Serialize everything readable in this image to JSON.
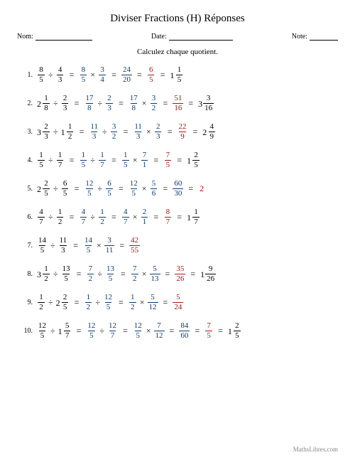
{
  "title": "Diviser Fractions (H) Réponses",
  "meta": {
    "name_label": "Nom:",
    "date_label": "Date:",
    "note_label": "Note:"
  },
  "instruction": "Calculez chaque quotient.",
  "footer": "MathsLibres.com",
  "colors": {
    "step_blue": "#0b3a6f",
    "result_red": "#a01818",
    "text": "#000000"
  },
  "line_widths": {
    "name": 80,
    "date": 90,
    "note": 40
  },
  "problems": [
    {
      "n": "1.",
      "lhs": [
        {
          "t": "f",
          "n": "8",
          "d": "5"
        },
        {
          "t": "op",
          "v": "÷"
        },
        {
          "t": "f",
          "n": "4",
          "d": "3"
        }
      ],
      "steps": [
        [
          {
            "t": "f",
            "n": "8",
            "d": "5",
            "c": "b"
          },
          {
            "t": "op",
            "v": "×"
          },
          {
            "t": "f",
            "n": "3",
            "d": "4",
            "c": "b"
          }
        ],
        [
          {
            "t": "f",
            "n": "24",
            "d": "20",
            "c": "b"
          }
        ],
        [
          {
            "t": "f",
            "n": "6",
            "d": "5",
            "c": "r"
          }
        ],
        [
          {
            "t": "m",
            "w": "1",
            "n": "1",
            "d": "5"
          }
        ]
      ]
    },
    {
      "n": "2.",
      "lhs": [
        {
          "t": "m",
          "w": "2",
          "n": "1",
          "d": "8"
        },
        {
          "t": "op",
          "v": "÷"
        },
        {
          "t": "f",
          "n": "2",
          "d": "3"
        }
      ],
      "steps": [
        [
          {
            "t": "f",
            "n": "17",
            "d": "8",
            "c": "b"
          },
          {
            "t": "op",
            "v": "÷"
          },
          {
            "t": "f",
            "n": "2",
            "d": "3",
            "c": "b"
          }
        ],
        [
          {
            "t": "f",
            "n": "17",
            "d": "8",
            "c": "b"
          },
          {
            "t": "op",
            "v": "×"
          },
          {
            "t": "f",
            "n": "3",
            "d": "2",
            "c": "b"
          }
        ],
        [
          {
            "t": "f",
            "n": "51",
            "d": "16",
            "c": "r"
          }
        ],
        [
          {
            "t": "m",
            "w": "3",
            "n": "3",
            "d": "16"
          }
        ]
      ]
    },
    {
      "n": "3.",
      "lhs": [
        {
          "t": "m",
          "w": "3",
          "n": "2",
          "d": "3"
        },
        {
          "t": "op",
          "v": "÷"
        },
        {
          "t": "m",
          "w": "1",
          "n": "1",
          "d": "2"
        }
      ],
      "steps": [
        [
          {
            "t": "f",
            "n": "11",
            "d": "3",
            "c": "b"
          },
          {
            "t": "op",
            "v": "÷"
          },
          {
            "t": "f",
            "n": "3",
            "d": "2",
            "c": "b"
          }
        ],
        [
          {
            "t": "f",
            "n": "11",
            "d": "3",
            "c": "b"
          },
          {
            "t": "op",
            "v": "×"
          },
          {
            "t": "f",
            "n": "2",
            "d": "3",
            "c": "b"
          }
        ],
        [
          {
            "t": "f",
            "n": "22",
            "d": "9",
            "c": "r"
          }
        ],
        [
          {
            "t": "m",
            "w": "2",
            "n": "4",
            "d": "9"
          }
        ]
      ]
    },
    {
      "n": "4.",
      "lhs": [
        {
          "t": "f",
          "n": "1",
          "d": "5"
        },
        {
          "t": "op",
          "v": "÷"
        },
        {
          "t": "f",
          "n": "1",
          "d": "7"
        }
      ],
      "steps": [
        [
          {
            "t": "f",
            "n": "1",
            "d": "5",
            "c": "b"
          },
          {
            "t": "op",
            "v": "÷"
          },
          {
            "t": "f",
            "n": "1",
            "d": "7",
            "c": "b"
          }
        ],
        [
          {
            "t": "f",
            "n": "1",
            "d": "5",
            "c": "b"
          },
          {
            "t": "op",
            "v": "×"
          },
          {
            "t": "f",
            "n": "7",
            "d": "1",
            "c": "b"
          }
        ],
        [
          {
            "t": "f",
            "n": "7",
            "d": "5",
            "c": "r"
          }
        ],
        [
          {
            "t": "m",
            "w": "1",
            "n": "2",
            "d": "5"
          }
        ]
      ]
    },
    {
      "n": "5.",
      "lhs": [
        {
          "t": "m",
          "w": "2",
          "n": "2",
          "d": "5"
        },
        {
          "t": "op",
          "v": "÷"
        },
        {
          "t": "f",
          "n": "6",
          "d": "5"
        }
      ],
      "steps": [
        [
          {
            "t": "f",
            "n": "12",
            "d": "5",
            "c": "b"
          },
          {
            "t": "op",
            "v": "÷"
          },
          {
            "t": "f",
            "n": "6",
            "d": "5",
            "c": "b"
          }
        ],
        [
          {
            "t": "f",
            "n": "12",
            "d": "5",
            "c": "b"
          },
          {
            "t": "op",
            "v": "×"
          },
          {
            "t": "f",
            "n": "5",
            "d": "6",
            "c": "b"
          }
        ],
        [
          {
            "t": "f",
            "n": "60",
            "d": "30",
            "c": "b"
          }
        ],
        [
          {
            "t": "w",
            "v": "2",
            "c": "r"
          }
        ]
      ]
    },
    {
      "n": "6.",
      "lhs": [
        {
          "t": "f",
          "n": "4",
          "d": "7"
        },
        {
          "t": "op",
          "v": "÷"
        },
        {
          "t": "f",
          "n": "1",
          "d": "2"
        }
      ],
      "steps": [
        [
          {
            "t": "f",
            "n": "4",
            "d": "7",
            "c": "b"
          },
          {
            "t": "op",
            "v": "÷"
          },
          {
            "t": "f",
            "n": "1",
            "d": "2",
            "c": "b"
          }
        ],
        [
          {
            "t": "f",
            "n": "4",
            "d": "7",
            "c": "b"
          },
          {
            "t": "op",
            "v": "×"
          },
          {
            "t": "f",
            "n": "2",
            "d": "1",
            "c": "b"
          }
        ],
        [
          {
            "t": "f",
            "n": "8",
            "d": "7",
            "c": "r"
          }
        ],
        [
          {
            "t": "m",
            "w": "1",
            "n": "1",
            "d": "7"
          }
        ]
      ]
    },
    {
      "n": "7.",
      "lhs": [
        {
          "t": "f",
          "n": "14",
          "d": "5"
        },
        {
          "t": "op",
          "v": "÷"
        },
        {
          "t": "f",
          "n": "11",
          "d": "3"
        }
      ],
      "steps": [
        [
          {
            "t": "f",
            "n": "14",
            "d": "5",
            "c": "b"
          },
          {
            "t": "op",
            "v": "×"
          },
          {
            "t": "f",
            "n": "3",
            "d": "11",
            "c": "b"
          }
        ],
        [
          {
            "t": "f",
            "n": "42",
            "d": "55",
            "c": "r"
          }
        ]
      ]
    },
    {
      "n": "8.",
      "lhs": [
        {
          "t": "m",
          "w": "3",
          "n": "1",
          "d": "2"
        },
        {
          "t": "op",
          "v": "÷"
        },
        {
          "t": "f",
          "n": "13",
          "d": "5"
        }
      ],
      "steps": [
        [
          {
            "t": "f",
            "n": "7",
            "d": "2",
            "c": "b"
          },
          {
            "t": "op",
            "v": "÷"
          },
          {
            "t": "f",
            "n": "13",
            "d": "5",
            "c": "b"
          }
        ],
        [
          {
            "t": "f",
            "n": "7",
            "d": "2",
            "c": "b"
          },
          {
            "t": "op",
            "v": "×"
          },
          {
            "t": "f",
            "n": "5",
            "d": "13",
            "c": "b"
          }
        ],
        [
          {
            "t": "f",
            "n": "35",
            "d": "26",
            "c": "r"
          }
        ],
        [
          {
            "t": "m",
            "w": "1",
            "n": "9",
            "d": "26"
          }
        ]
      ]
    },
    {
      "n": "9.",
      "lhs": [
        {
          "t": "f",
          "n": "1",
          "d": "2"
        },
        {
          "t": "op",
          "v": "÷"
        },
        {
          "t": "m",
          "w": "2",
          "n": "2",
          "d": "5"
        }
      ],
      "steps": [
        [
          {
            "t": "f",
            "n": "1",
            "d": "2",
            "c": "b"
          },
          {
            "t": "op",
            "v": "÷"
          },
          {
            "t": "f",
            "n": "12",
            "d": "5",
            "c": "b"
          }
        ],
        [
          {
            "t": "f",
            "n": "1",
            "d": "2",
            "c": "b"
          },
          {
            "t": "op",
            "v": "×"
          },
          {
            "t": "f",
            "n": "5",
            "d": "12",
            "c": "b"
          }
        ],
        [
          {
            "t": "f",
            "n": "5",
            "d": "24",
            "c": "r"
          }
        ]
      ]
    },
    {
      "n": "10.",
      "lhs": [
        {
          "t": "f",
          "n": "12",
          "d": "5"
        },
        {
          "t": "op",
          "v": "÷"
        },
        {
          "t": "m",
          "w": "1",
          "n": "5",
          "d": "7"
        }
      ],
      "steps": [
        [
          {
            "t": "f",
            "n": "12",
            "d": "5",
            "c": "b"
          },
          {
            "t": "op",
            "v": "÷"
          },
          {
            "t": "f",
            "n": "12",
            "d": "7",
            "c": "b"
          }
        ],
        [
          {
            "t": "f",
            "n": "12",
            "d": "5",
            "c": "b"
          },
          {
            "t": "op",
            "v": "×"
          },
          {
            "t": "f",
            "n": "7",
            "d": "12",
            "c": "b"
          }
        ],
        [
          {
            "t": "f",
            "n": "84",
            "d": "60",
            "c": "b"
          }
        ],
        [
          {
            "t": "f",
            "n": "7",
            "d": "5",
            "c": "r"
          }
        ],
        [
          {
            "t": "m",
            "w": "1",
            "n": "2",
            "d": "5"
          }
        ]
      ]
    }
  ]
}
